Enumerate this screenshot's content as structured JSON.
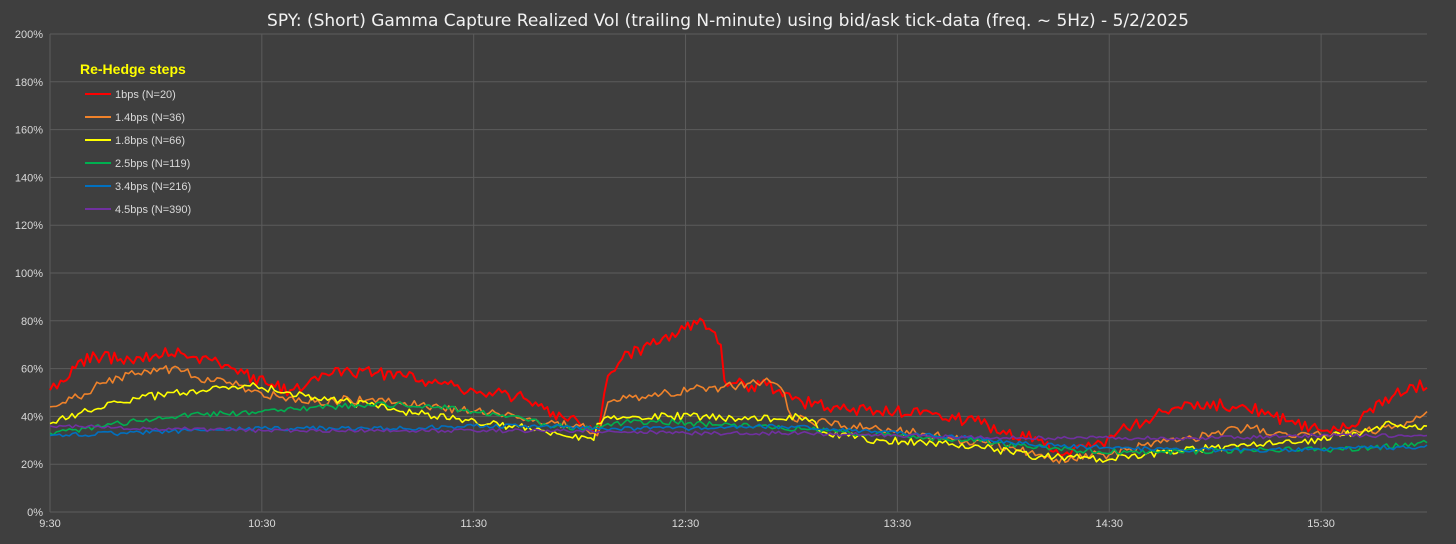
{
  "chart_data": {
    "type": "line",
    "title": "SPY: (Short) Gamma Capture Realized Vol (trailing N-minute) using bid/ask tick-data (freq. ~ 5Hz) - 5/2/2025",
    "xlabel": "",
    "ylabel": "",
    "x_ticks": [
      "9:30",
      "10:30",
      "11:30",
      "12:30",
      "13:30",
      "14:30",
      "15:30"
    ],
    "x_range_minutes": [
      0,
      390
    ],
    "y_ticks": [
      "0%",
      "20%",
      "40%",
      "60%",
      "80%",
      "100%",
      "120%",
      "140%",
      "160%",
      "180%",
      "200%"
    ],
    "ylim": [
      0,
      200
    ],
    "grid": true,
    "legend_title": "Re-Hedge steps",
    "legend_placement": "top-left",
    "series": [
      {
        "name": "1bps  (N=20)",
        "color": "#ff0000",
        "x": [
          0,
          3,
          8,
          13,
          20,
          30,
          38,
          45,
          55,
          62,
          68,
          72,
          76,
          80,
          85,
          92,
          100,
          110,
          120,
          128,
          135,
          140,
          145,
          150,
          154,
          155,
          158,
          162,
          170,
          178,
          185,
          190,
          191,
          197,
          203,
          213,
          222,
          235,
          250,
          262,
          270,
          280,
          285,
          288,
          295,
          305,
          315,
          325,
          335,
          345,
          350,
          360,
          368,
          373,
          380,
          386,
          390
        ],
        "y": [
          51,
          55,
          63,
          65,
          64,
          66,
          66,
          64,
          58,
          53,
          51,
          52,
          55,
          58,
          59,
          58,
          57,
          54,
          51,
          50,
          47,
          43,
          40,
          37,
          33,
          32,
          57,
          64,
          70,
          75,
          80,
          70,
          55,
          53,
          53,
          46,
          44,
          42,
          41,
          38,
          34,
          30,
          26,
          25,
          27,
          35,
          42,
          46,
          44,
          42,
          38,
          34,
          35,
          42,
          48,
          53,
          52
        ]
      },
      {
        "name": "1.4bps  (N=36)",
        "color": "#f0822a",
        "x": [
          0,
          8,
          15,
          25,
          32,
          38,
          42,
          50,
          58,
          65,
          75,
          85,
          95,
          105,
          120,
          135,
          150,
          154,
          155,
          158,
          165,
          175,
          185,
          190,
          195,
          200,
          203,
          207,
          210,
          215,
          225,
          240,
          255,
          265,
          272,
          280,
          285,
          290,
          295,
          300,
          305,
          310,
          320,
          330,
          340,
          350,
          360,
          370,
          380,
          386,
          390
        ],
        "y": [
          44,
          48,
          54,
          58,
          60,
          59,
          56,
          54,
          51,
          48,
          46,
          47,
          46,
          45,
          42,
          39,
          36,
          33,
          32,
          46,
          48,
          50,
          52,
          52,
          53,
          54,
          56,
          52,
          40,
          38,
          36,
          34,
          31,
          29,
          27,
          24,
          22,
          22,
          24,
          24,
          26,
          28,
          30,
          33,
          35,
          33,
          32,
          34,
          35,
          38,
          42
        ]
      },
      {
        "name": "1.8bps  (N=66)",
        "color": "#ffff00",
        "x": [
          0,
          8,
          20,
          35,
          48,
          55,
          60,
          68,
          75,
          85,
          100,
          115,
          130,
          140,
          148,
          154,
          155,
          158,
          165,
          175,
          185,
          195,
          205,
          212,
          215,
          220,
          235,
          250,
          262,
          272,
          280,
          290,
          300,
          310,
          320,
          330,
          340,
          350,
          360,
          365,
          370,
          375,
          380,
          385,
          390
        ],
        "y": [
          37,
          41,
          46,
          50,
          52,
          53,
          52,
          50,
          48,
          46,
          42,
          39,
          36,
          34,
          31,
          30,
          37,
          40,
          40,
          40,
          40,
          39,
          39,
          40,
          38,
          33,
          30,
          29,
          28,
          25,
          23,
          23,
          22,
          24,
          26,
          27,
          28,
          30,
          30,
          33,
          33,
          35,
          37,
          36,
          36
        ]
      },
      {
        "name": "2.5bps  (N=119)",
        "color": "#00b050",
        "x": [
          0,
          10,
          20,
          30,
          40,
          50,
          60,
          70,
          80,
          90,
          100,
          110,
          120,
          130,
          140,
          150,
          154,
          158,
          170,
          185,
          200,
          220,
          240,
          260,
          275,
          290,
          305,
          320,
          340,
          360,
          375,
          390
        ],
        "y": [
          33,
          35,
          37,
          39,
          41,
          41,
          42,
          43,
          44,
          45,
          45,
          44,
          42,
          40,
          37,
          35,
          35,
          37,
          38,
          37,
          36,
          34,
          32,
          30,
          28,
          26,
          25,
          25,
          26,
          26,
          27,
          29
        ]
      },
      {
        "name": "3.4bps  (N=216)",
        "color": "#0070c0",
        "x": [
          0,
          20,
          40,
          60,
          80,
          100,
          120,
          140,
          160,
          180,
          200,
          220,
          240,
          260,
          280,
          300,
          320,
          340,
          360,
          375,
          385,
          390
        ],
        "y": [
          32,
          33,
          34,
          35,
          35,
          35,
          36,
          36,
          35,
          35,
          36,
          35,
          33,
          31,
          28,
          27,
          26,
          26,
          26,
          27,
          27,
          28
        ]
      },
      {
        "name": "4.5bps  (N=390)",
        "color": "#7030a0",
        "x": [
          0,
          30,
          60,
          90,
          120,
          150,
          180,
          210,
          240,
          270,
          300,
          330,
          360,
          390
        ],
        "y": [
          36,
          35,
          34,
          34,
          34,
          34,
          33,
          33,
          32,
          31,
          31,
          31,
          32,
          32
        ]
      }
    ]
  }
}
